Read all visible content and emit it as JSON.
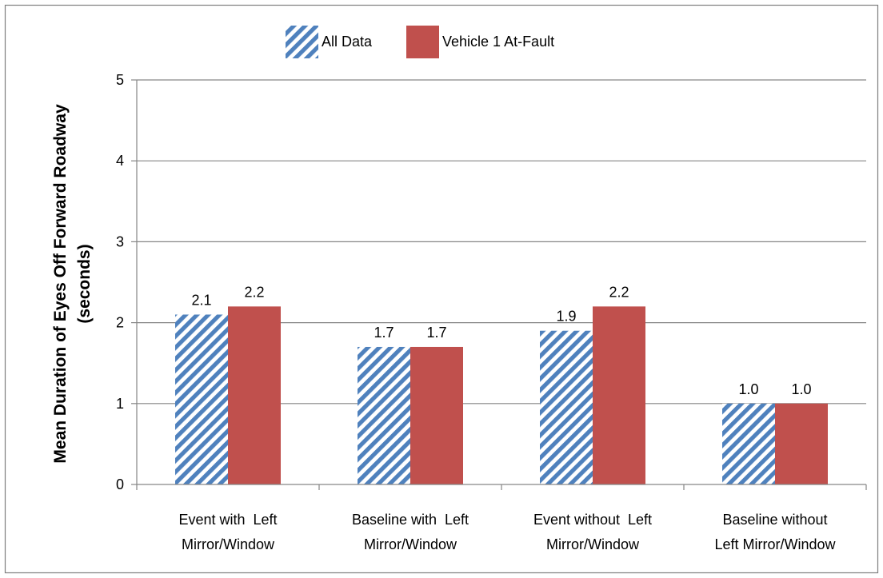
{
  "chart_data": {
    "type": "bar",
    "categories": [
      [
        "Event with  Left",
        "Mirror/Window"
      ],
      [
        "Baseline with  Left",
        "Mirror/Window"
      ],
      [
        "Event without  Left",
        "Mirror/Window"
      ],
      [
        "Baseline without",
        "Left Mirror/Window"
      ]
    ],
    "series": [
      {
        "name": "All Data",
        "values": [
          2.1,
          1.7,
          1.9,
          1.0
        ],
        "labels": [
          "2.1",
          "1.7",
          "1.9",
          "1.0"
        ],
        "fill": "hatched",
        "color": "#4F81BD"
      },
      {
        "name": "Vehicle 1 At-Fault",
        "values": [
          2.2,
          1.7,
          2.2,
          1.0
        ],
        "labels": [
          "2.2",
          "1.7",
          "2.2",
          "1.0"
        ],
        "fill": "solid",
        "color": "#C0504D"
      }
    ],
    "title": "",
    "xlabel": "",
    "ylabel": [
      "Mean Duration of Eyes Off Forward Roadway",
      "(seconds)"
    ],
    "ylim": [
      0,
      5
    ],
    "yticks": [
      0,
      1,
      2,
      3,
      4,
      5
    ],
    "grid": true,
    "legend": "top-center",
    "border_color": "#7F7F7F",
    "grid_color": "#868686"
  }
}
